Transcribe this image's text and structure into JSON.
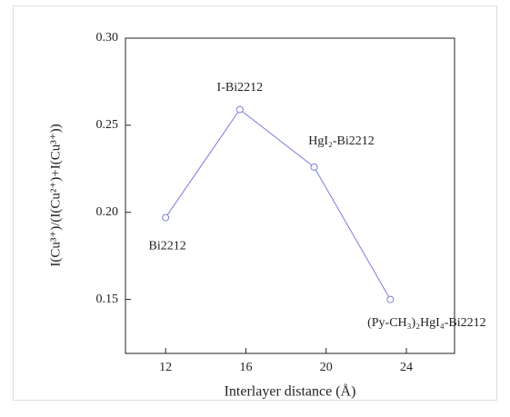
{
  "chart_data": {
    "type": "line",
    "x_label": "Interlayer distance (Å)",
    "y_label": "I(Cu³⁺)/(I(Cu²⁺)+I(Cu³⁺))",
    "x": [
      12,
      15.7,
      19.4,
      23.2
    ],
    "series": [
      {
        "color": "#7b80d6",
        "values": [
          0.197,
          0.259,
          0.226,
          0.15
        ]
      }
    ],
    "point_labels": [
      "Bi2212",
      "I-Bi2212",
      "HgI₂-Bi2212",
      "(Py-CH₃)₂HgI₄-Bi2212"
    ],
    "xlim": [
      10,
      26.4
    ],
    "xticks": [
      12,
      16,
      20,
      24
    ],
    "ylim": [
      0.119,
      0.3
    ],
    "yticks": [
      0.15,
      {
        "value": 0.2,
        "label": "0.20"
      },
      0.25,
      {
        "value": 0.3,
        "label": "0.30"
      }
    ]
  }
}
